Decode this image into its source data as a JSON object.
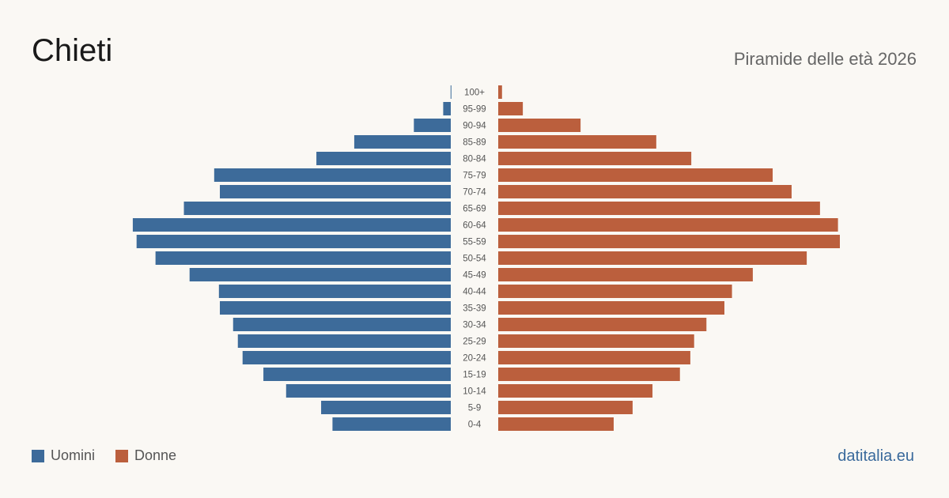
{
  "header": {
    "title": "Chieti",
    "subtitle": "Piramide delle età 2026"
  },
  "legend": {
    "men": "Uomini",
    "women": "Donne"
  },
  "source": "datitalia.eu",
  "colors": {
    "men": "#3d6b9a",
    "women": "#bb5f3d",
    "background": "#faf8f4"
  },
  "chart_data": {
    "type": "bar",
    "orientation": "horizontal-pyramid",
    "title": "Piramide delle età 2026",
    "categories": [
      "100+",
      "95-99",
      "90-94",
      "85-89",
      "80-84",
      "75-79",
      "70-74",
      "65-69",
      "60-64",
      "55-59",
      "50-54",
      "45-49",
      "40-44",
      "35-39",
      "30-34",
      "25-29",
      "20-24",
      "15-19",
      "10-14",
      "5-9",
      "0-4"
    ],
    "series": [
      {
        "name": "Uomini",
        "side": "left",
        "values": [
          1,
          40,
          195,
          510,
          710,
          1250,
          1220,
          1410,
          1680,
          1660,
          1560,
          1380,
          1225,
          1220,
          1150,
          1125,
          1100,
          990,
          870,
          685,
          625
        ]
      },
      {
        "name": "Donne",
        "side": "right",
        "values": [
          20,
          130,
          435,
          835,
          1020,
          1450,
          1550,
          1700,
          1795,
          1805,
          1630,
          1345,
          1235,
          1195,
          1100,
          1035,
          1015,
          960,
          815,
          710,
          610
        ]
      }
    ],
    "grid": false,
    "legend_position": "bottom-left"
  }
}
